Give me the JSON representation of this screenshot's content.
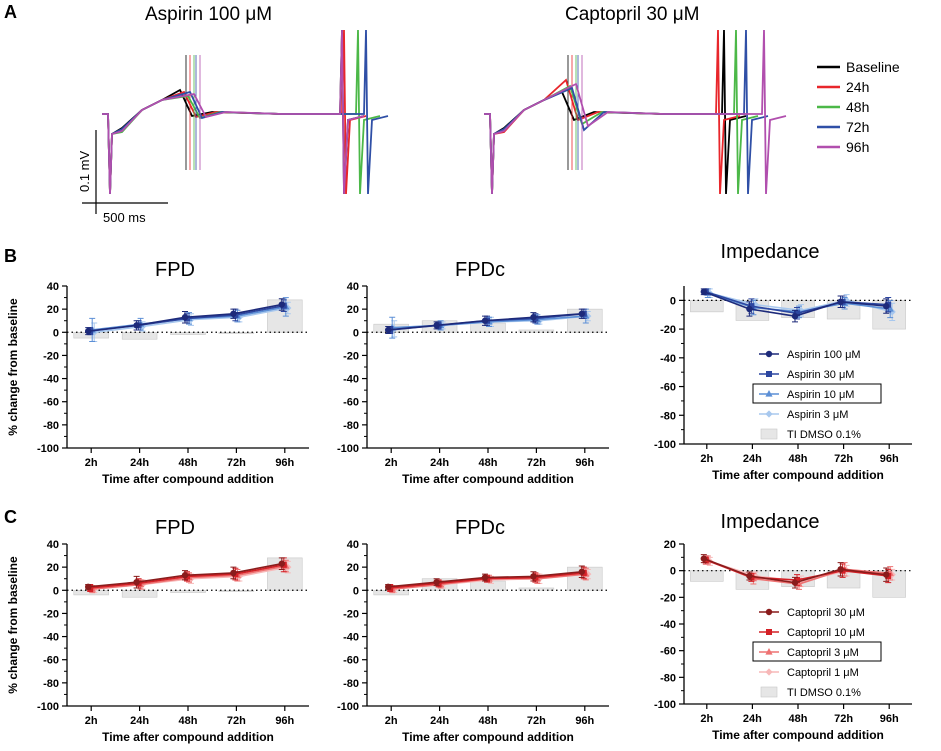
{
  "panel_labels": [
    "A",
    "B",
    "C"
  ],
  "trace_panel": {
    "titles": [
      "Aspirin 100 μM",
      "Captopril 30 μM"
    ],
    "legend": [
      {
        "label": "Baseline",
        "color": "#000000"
      },
      {
        "label": "24h",
        "color": "#e8262b"
      },
      {
        "label": "48h",
        "color": "#4cb848"
      },
      {
        "label": "72h",
        "color": "#2f4fa6"
      },
      {
        "label": "96h",
        "color": "#b14fae"
      }
    ],
    "scale_v": "0.1 mV",
    "scale_t": "500 ms"
  },
  "chart_data": [
    {
      "id": "B-FPD",
      "type": "line",
      "title": "FPD",
      "categories": [
        "2h",
        "24h",
        "48h",
        "72h",
        "96h"
      ],
      "ylim": [
        -100,
        40
      ],
      "yticks": [
        40,
        20,
        0,
        -20,
        -40,
        -60,
        -80,
        -100
      ],
      "ylabel": "% change from baseline",
      "xlabel": "Time after compound addition",
      "dmso": [
        -5,
        -6,
        -2,
        -1,
        28
      ],
      "series": [
        {
          "name": "Aspirin 100 μM",
          "color": "#1d2a7a",
          "marker": "circle",
          "values": [
            1,
            6,
            13,
            16,
            24
          ],
          "err": [
            3,
            4,
            5,
            4,
            5
          ]
        },
        {
          "name": "Aspirin 30 μM",
          "color": "#2c46a0",
          "marker": "square",
          "values": [
            1,
            6,
            12,
            15,
            23
          ],
          "err": [
            3,
            4,
            4,
            5,
            5
          ]
        },
        {
          "name": "Aspirin 10 μM",
          "color": "#5c8fd6",
          "marker": "triangle",
          "values": [
            2,
            7,
            12,
            14,
            22
          ],
          "err": [
            10,
            5,
            5,
            5,
            8
          ]
        },
        {
          "name": "Aspirin 3 μM",
          "color": "#a8c8ee",
          "marker": "diamond",
          "values": [
            0,
            5,
            11,
            13,
            21
          ],
          "err": [
            8,
            4,
            5,
            4,
            5
          ]
        }
      ]
    },
    {
      "id": "B-FPDc",
      "type": "line",
      "title": "FPDc",
      "categories": [
        "2h",
        "24h",
        "48h",
        "72h",
        "96h"
      ],
      "ylim": [
        -100,
        40
      ],
      "yticks": [
        40,
        20,
        0,
        -20,
        -40,
        -60,
        -80,
        -100
      ],
      "ylabel": "",
      "xlabel": "Time after compound addition",
      "dmso": [
        7,
        10,
        8,
        2,
        20
      ],
      "series": [
        {
          "name": "Aspirin 100 μM",
          "color": "#1d2a7a",
          "marker": "circle",
          "values": [
            2,
            6,
            10,
            13,
            16
          ],
          "err": [
            3,
            3,
            4,
            4,
            4
          ]
        },
        {
          "name": "Aspirin 30 μM",
          "color": "#2c46a0",
          "marker": "square",
          "values": [
            2,
            6,
            10,
            12,
            16
          ],
          "err": [
            3,
            3,
            4,
            4,
            4
          ]
        },
        {
          "name": "Aspirin 10 μM",
          "color": "#5c8fd6",
          "marker": "triangle",
          "values": [
            4,
            6,
            9,
            11,
            14
          ],
          "err": [
            9,
            4,
            4,
            4,
            6
          ]
        },
        {
          "name": "Aspirin 3 μM",
          "color": "#a8c8ee",
          "marker": "diamond",
          "values": [
            3,
            6,
            9,
            10,
            14
          ],
          "err": [
            7,
            3,
            4,
            3,
            4
          ]
        }
      ]
    },
    {
      "id": "B-Impedance",
      "type": "line",
      "title": "Impedance",
      "categories": [
        "2h",
        "24h",
        "48h",
        "72h",
        "96h"
      ],
      "ylim": [
        -100,
        10
      ],
      "yticks": [
        0,
        -20,
        -40,
        -60,
        -80,
        -100
      ],
      "ylabel": "",
      "xlabel": "Time after compound addition",
      "dmso": [
        -8,
        -14,
        -12,
        -13,
        -20
      ],
      "series": [
        {
          "name": "Aspirin 100 μM",
          "color": "#1d2a7a",
          "marker": "circle",
          "values": [
            6,
            -6,
            -11,
            -1,
            -4
          ],
          "err": [
            2,
            5,
            4,
            4,
            5
          ]
        },
        {
          "name": "Aspirin 30 μM",
          "color": "#2c46a0",
          "marker": "square",
          "values": [
            6,
            -4,
            -9,
            -1,
            -3
          ],
          "err": [
            2,
            5,
            4,
            4,
            5
          ]
        },
        {
          "name": "Aspirin 10 μM",
          "color": "#5c8fd6",
          "marker": "triangle",
          "values": [
            5,
            -5,
            -8,
            -2,
            -6
          ],
          "err": [
            3,
            5,
            4,
            4,
            6
          ]
        },
        {
          "name": "Aspirin 3 μM",
          "color": "#a8c8ee",
          "marker": "diamond",
          "values": [
            5,
            -3,
            -7,
            0,
            -8
          ],
          "err": [
            3,
            4,
            4,
            4,
            6
          ]
        }
      ],
      "legend": [
        "Aspirin 100 μM",
        "Aspirin 30 μM",
        "Aspirin 10 μM",
        "Aspirin 3 μM",
        "TI DMSO 0.1%"
      ],
      "legend_boxed": "Aspirin 10 μM"
    },
    {
      "id": "C-FPD",
      "type": "line",
      "title": "FPD",
      "categories": [
        "2h",
        "24h",
        "48h",
        "72h",
        "96h"
      ],
      "ylim": [
        -100,
        40
      ],
      "yticks": [
        40,
        20,
        0,
        -20,
        -40,
        -60,
        -80,
        -100
      ],
      "ylabel": "% change from baseline",
      "xlabel": "Time after compound addition",
      "dmso": [
        -4,
        -6,
        -2,
        -1,
        28
      ],
      "series": [
        {
          "name": "Captopril 30 μM",
          "color": "#8a1c1c",
          "marker": "circle",
          "values": [
            3,
            7,
            13,
            15,
            23
          ],
          "err": [
            2,
            5,
            4,
            5,
            5
          ]
        },
        {
          "name": "Captopril 10 μM",
          "color": "#d42026",
          "marker": "square",
          "values": [
            2,
            6,
            12,
            14,
            22
          ],
          "err": [
            3,
            4,
            4,
            5,
            6
          ]
        },
        {
          "name": "Captopril 3 μM",
          "color": "#ee7272",
          "marker": "triangle",
          "values": [
            1,
            5,
            11,
            13,
            21
          ],
          "err": [
            3,
            4,
            4,
            5,
            5
          ]
        },
        {
          "name": "Captopril 1 μM",
          "color": "#f7b8b8",
          "marker": "diamond",
          "values": [
            1,
            5,
            10,
            12,
            20
          ],
          "err": [
            3,
            4,
            4,
            4,
            5
          ]
        }
      ]
    },
    {
      "id": "C-FPDc",
      "type": "line",
      "title": "FPDc",
      "categories": [
        "2h",
        "24h",
        "48h",
        "72h",
        "96h"
      ],
      "ylim": [
        -100,
        40
      ],
      "yticks": [
        40,
        20,
        0,
        -20,
        -40,
        -60,
        -80,
        -100
      ],
      "ylabel": "",
      "xlabel": "Time after compound addition",
      "dmso": [
        -4,
        10,
        8,
        2,
        20
      ],
      "series": [
        {
          "name": "Captopril 30 μM",
          "color": "#8a1c1c",
          "marker": "circle",
          "values": [
            3,
            7,
            11,
            12,
            16
          ],
          "err": [
            2,
            3,
            3,
            4,
            5
          ]
        },
        {
          "name": "Captopril 10 μM",
          "color": "#d42026",
          "marker": "square",
          "values": [
            2,
            6,
            10,
            11,
            15
          ],
          "err": [
            3,
            3,
            3,
            4,
            5
          ]
        },
        {
          "name": "Captopril 3 μM",
          "color": "#ee7272",
          "marker": "triangle",
          "values": [
            1,
            5,
            10,
            10,
            14
          ],
          "err": [
            3,
            3,
            3,
            4,
            5
          ]
        },
        {
          "name": "Captopril 1 μM",
          "color": "#f7b8b8",
          "marker": "diamond",
          "values": [
            1,
            5,
            9,
            10,
            14
          ],
          "err": [
            3,
            3,
            3,
            4,
            4
          ]
        }
      ]
    },
    {
      "id": "C-Impedance",
      "type": "line",
      "title": "Impedance",
      "categories": [
        "2h",
        "24h",
        "48h",
        "72h",
        "96h"
      ],
      "ylim": [
        -100,
        20
      ],
      "yticks": [
        20,
        0,
        -20,
        -40,
        -60,
        -80,
        -100
      ],
      "ylabel": "",
      "xlabel": "Time after compound addition",
      "dmso": [
        -8,
        -14,
        -12,
        -13,
        -20
      ],
      "series": [
        {
          "name": "Captopril 30 μM",
          "color": "#8a1c1c",
          "marker": "circle",
          "values": [
            9,
            -4,
            -9,
            1,
            -3
          ],
          "err": [
            3,
            3,
            4,
            5,
            5
          ]
        },
        {
          "name": "Captopril 10 μM",
          "color": "#d42026",
          "marker": "square",
          "values": [
            8,
            -5,
            -7,
            0,
            -4
          ],
          "err": [
            3,
            3,
            4,
            5,
            5
          ]
        },
        {
          "name": "Captopril 3 μM",
          "color": "#ee7272",
          "marker": "triangle",
          "values": [
            8,
            -6,
            -10,
            1,
            -2
          ],
          "err": [
            3,
            4,
            4,
            5,
            5
          ]
        },
        {
          "name": "Captopril 1 μM",
          "color": "#f7b8b8",
          "marker": "diamond",
          "values": [
            7,
            -4,
            -8,
            0,
            -3
          ],
          "err": [
            3,
            3,
            4,
            4,
            4
          ]
        }
      ],
      "legend": [
        "Captopril 30 μM",
        "Captopril 10 μM",
        "Captopril 3 μM",
        "Captopril 1 μM",
        "TI DMSO 0.1%"
      ],
      "legend_boxed": "Captopril 3 μM"
    }
  ]
}
